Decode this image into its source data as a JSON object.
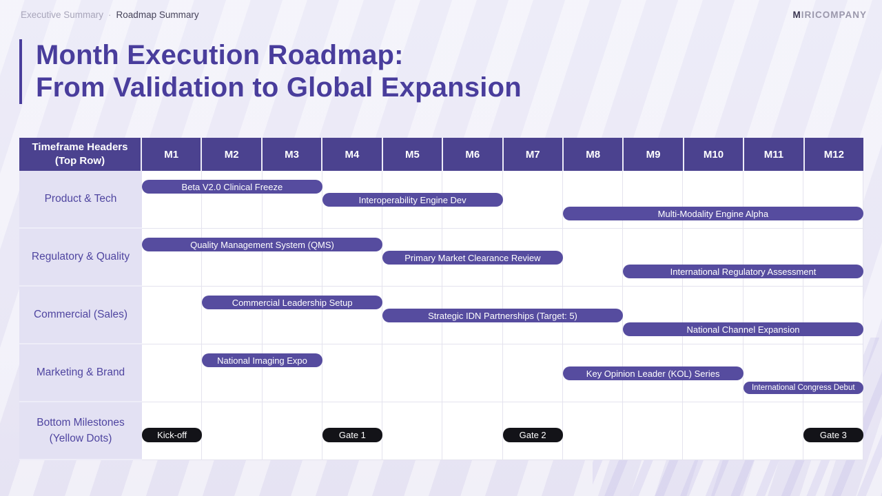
{
  "breadcrumb": {
    "section": "Executive Summary",
    "separator": "·",
    "page": "Roadmap Summary"
  },
  "logo": {
    "initial": "M",
    "rest": "IRICOMPANY"
  },
  "title": {
    "line1": "Month Execution Roadmap:",
    "line2": "From Validation to Global Expansion"
  },
  "colors": {
    "accent_purple": "#493d9c",
    "header_bg": "#4b428f",
    "bar_bg": "#564c9f",
    "milestone_bg": "#131318",
    "row_label_bg": "#e3e1f3",
    "row_label_text": "#4f45a0"
  },
  "table": {
    "corner_header": [
      "Timeframe Headers",
      "(Top Row)"
    ],
    "months": [
      "M1",
      "M2",
      "M3",
      "M4",
      "M5",
      "M6",
      "M7",
      "M8",
      "M9",
      "M10",
      "M11",
      "M12"
    ],
    "rows": [
      {
        "label": [
          "Product & Tech"
        ],
        "bars": [
          {
            "label": "Beta V2.0 Clinical Freeze",
            "start": 1,
            "end": 3,
            "lane": 0
          },
          {
            "label": "Interoperability Engine Dev",
            "start": 4,
            "end": 6,
            "lane": 1
          },
          {
            "label": "Multi-Modality Engine Alpha",
            "start": 8,
            "end": 12,
            "lane": 2
          }
        ]
      },
      {
        "label": [
          "Regulatory & Quality"
        ],
        "bars": [
          {
            "label": "Quality Management System (QMS)",
            "start": 1,
            "end": 4,
            "lane": 0
          },
          {
            "label": "Primary Market Clearance Review",
            "start": 5,
            "end": 7,
            "lane": 1
          },
          {
            "label": "International Regulatory Assessment",
            "start": 9,
            "end": 12,
            "lane": 2
          }
        ]
      },
      {
        "label": [
          "Commercial (Sales)"
        ],
        "bars": [
          {
            "label": "Commercial Leadership Setup",
            "start": 2,
            "end": 4,
            "lane": 0
          },
          {
            "label": "Strategic IDN Partnerships (Target: 5)",
            "start": 5,
            "end": 8,
            "lane": 1
          },
          {
            "label": "National Channel Expansion",
            "start": 9,
            "end": 12,
            "lane": 2
          }
        ]
      },
      {
        "label": [
          "Marketing & Brand"
        ],
        "bars": [
          {
            "label": "National Imaging Expo",
            "start": 2,
            "end": 3,
            "lane": 0
          },
          {
            "label": "Key Opinion Leader (KOL) Series",
            "start": 8,
            "end": 10,
            "lane": 1
          },
          {
            "label": "International Congress Debut",
            "start": 11,
            "end": 12,
            "lane": 2,
            "small": true
          }
        ]
      },
      {
        "label": [
          "Bottom Milestones",
          "(Yellow Dots)"
        ],
        "milestones": [
          {
            "label": "Kick-off",
            "month": 1
          },
          {
            "label": "Gate 1",
            "month": 4
          },
          {
            "label": "Gate 2",
            "month": 7
          },
          {
            "label": "Gate 3",
            "month": 12
          }
        ]
      }
    ]
  }
}
